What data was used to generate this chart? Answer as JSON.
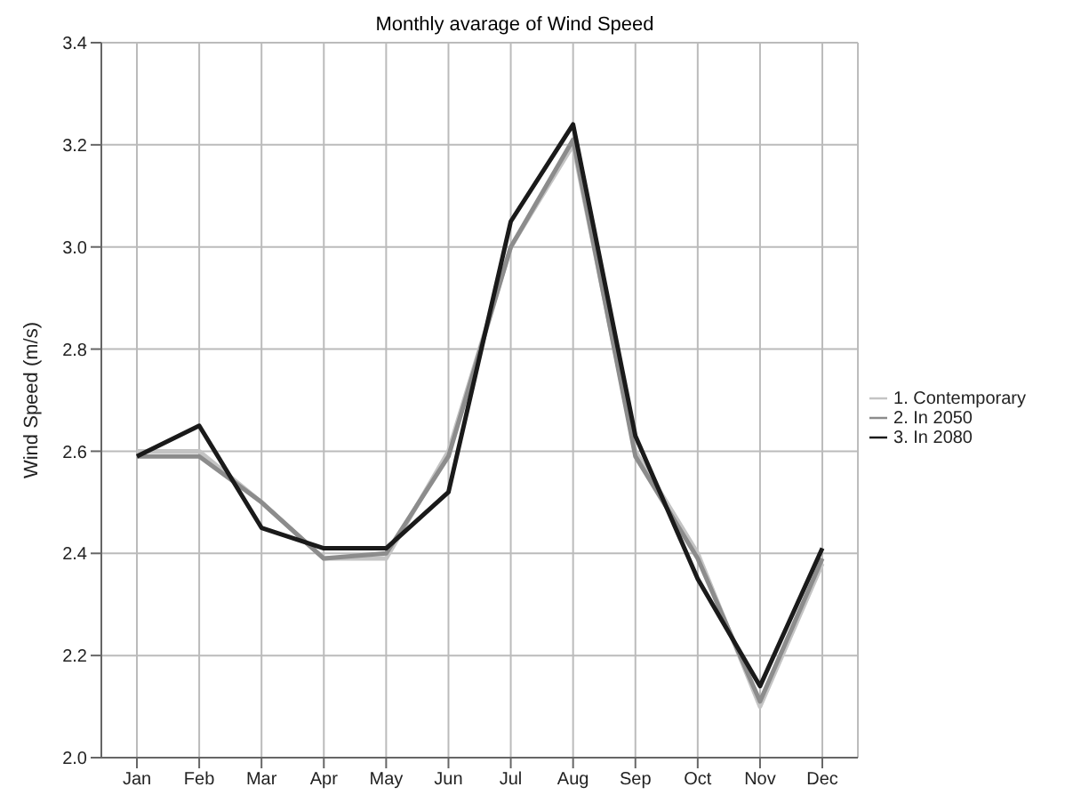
{
  "chart_data": {
    "type": "line",
    "title": "Monthly avarage of Wind Speed",
    "ylabel": "Wind Speed (m/s)",
    "categories": [
      "Jan",
      "Feb",
      "Mar",
      "Apr",
      "May",
      "Jun",
      "Jul",
      "Aug",
      "Sep",
      "Oct",
      "Nov",
      "Dec"
    ],
    "series": [
      {
        "name": "1. Contemporary",
        "color": "#c4c4c4",
        "values": [
          2.6,
          2.6,
          2.5,
          2.39,
          2.39,
          2.6,
          3.0,
          3.2,
          2.6,
          2.4,
          2.1,
          2.38
        ]
      },
      {
        "name": "2. In 2050",
        "color": "#8c8c8c",
        "values": [
          2.59,
          2.59,
          2.5,
          2.39,
          2.4,
          2.59,
          3.0,
          3.21,
          2.59,
          2.39,
          2.11,
          2.39
        ]
      },
      {
        "name": "3. In 2080",
        "color": "#1a1a1a",
        "values": [
          2.59,
          2.65,
          2.45,
          2.41,
          2.41,
          2.52,
          3.05,
          3.24,
          2.63,
          2.35,
          2.14,
          2.41
        ]
      }
    ],
    "ylim": [
      2.0,
      3.4
    ],
    "yticks": [
      {
        "value": 2,
        "label": "2.0"
      },
      2.2,
      2.4,
      2.6,
      2.8,
      {
        "value": 3,
        "label": "3.0"
      },
      3.2,
      3.4
    ],
    "grid": true,
    "legend": "right",
    "marker": "none",
    "line_style": "solid"
  }
}
